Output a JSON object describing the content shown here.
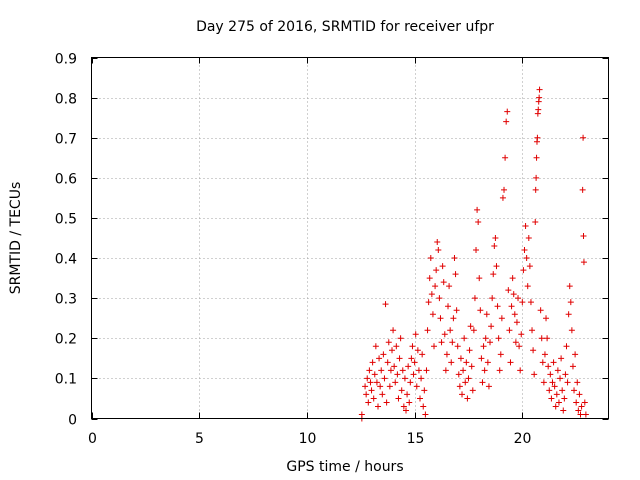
{
  "chart_data": {
    "type": "scatter",
    "title": "Day 275 of 2016, SRMTID for receiver ufpr",
    "xlabel": "GPS time / hours",
    "ylabel": "SRMTID / TECUs",
    "xlim": [
      0,
      24
    ],
    "ylim": [
      0,
      0.9
    ],
    "xticks": [
      0,
      5,
      10,
      15,
      20
    ],
    "yticks": [
      0,
      0.1,
      0.2,
      0.3,
      0.4,
      0.5,
      0.6,
      0.7,
      0.8,
      0.9
    ],
    "grid": true,
    "marker": "+",
    "series": [
      {
        "name": "SRMTID",
        "color": "#e00000",
        "points": [
          [
            12.55,
            0.0
          ],
          [
            12.55,
            0.01
          ],
          [
            12.7,
            0.08
          ],
          [
            12.75,
            0.06
          ],
          [
            12.8,
            0.1
          ],
          [
            12.85,
            0.04
          ],
          [
            12.9,
            0.12
          ],
          [
            12.95,
            0.09
          ],
          [
            13.0,
            0.07
          ],
          [
            13.05,
            0.14
          ],
          [
            13.1,
            0.05
          ],
          [
            13.15,
            0.11
          ],
          [
            13.2,
            0.18
          ],
          [
            13.25,
            0.09
          ],
          [
            13.3,
            0.03
          ],
          [
            13.35,
            0.15
          ],
          [
            13.4,
            0.08
          ],
          [
            13.45,
            0.12
          ],
          [
            13.5,
            0.06
          ],
          [
            13.55,
            0.16
          ],
          [
            13.6,
            0.1
          ],
          [
            13.65,
            0.285
          ],
          [
            13.7,
            0.04
          ],
          [
            13.75,
            0.14
          ],
          [
            13.8,
            0.19
          ],
          [
            13.85,
            0.08
          ],
          [
            13.9,
            0.12
          ],
          [
            13.95,
            0.17
          ],
          [
            14.0,
            0.22
          ],
          [
            14.05,
            0.13
          ],
          [
            14.1,
            0.09
          ],
          [
            14.15,
            0.18
          ],
          [
            14.2,
            0.11
          ],
          [
            14.25,
            0.05
          ],
          [
            14.3,
            0.15
          ],
          [
            14.35,
            0.2
          ],
          [
            14.4,
            0.07
          ],
          [
            14.45,
            0.12
          ],
          [
            14.5,
            0.03
          ],
          [
            14.55,
            0.1
          ],
          [
            14.6,
            0.02
          ],
          [
            14.65,
            0.06
          ],
          [
            14.7,
            0.13
          ],
          [
            14.75,
            0.04
          ],
          [
            14.8,
            0.09
          ],
          [
            14.85,
            0.15
          ],
          [
            14.9,
            0.18
          ],
          [
            14.95,
            0.11
          ],
          [
            15.0,
            0.14
          ],
          [
            15.05,
            0.21
          ],
          [
            15.1,
            0.08
          ],
          [
            15.15,
            0.17
          ],
          [
            15.2,
            0.12
          ],
          [
            15.25,
            0.05
          ],
          [
            15.3,
            0.1
          ],
          [
            15.35,
            0.16
          ],
          [
            15.4,
            0.03
          ],
          [
            15.45,
            0.07
          ],
          [
            15.5,
            0.01
          ],
          [
            15.55,
            0.12
          ],
          [
            15.6,
            0.22
          ],
          [
            15.65,
            0.29
          ],
          [
            15.7,
            0.35
          ],
          [
            15.75,
            0.4
          ],
          [
            15.8,
            0.31
          ],
          [
            15.85,
            0.26
          ],
          [
            15.9,
            0.18
          ],
          [
            15.95,
            0.33
          ],
          [
            16.0,
            0.37
          ],
          [
            16.05,
            0.44
          ],
          [
            16.1,
            0.42
          ],
          [
            16.15,
            0.3
          ],
          [
            16.2,
            0.25
          ],
          [
            16.25,
            0.19
          ],
          [
            16.3,
            0.38
          ],
          [
            16.35,
            0.34
          ],
          [
            16.4,
            0.21
          ],
          [
            16.45,
            0.12
          ],
          [
            16.5,
            0.16
          ],
          [
            16.55,
            0.28
          ],
          [
            16.6,
            0.33
          ],
          [
            16.65,
            0.22
          ],
          [
            16.7,
            0.14
          ],
          [
            16.75,
            0.19
          ],
          [
            16.8,
            0.25
          ],
          [
            16.85,
            0.4
          ],
          [
            16.9,
            0.36
          ],
          [
            16.95,
            0.27
          ],
          [
            17.0,
            0.18
          ],
          [
            17.05,
            0.11
          ],
          [
            17.1,
            0.08
          ],
          [
            17.15,
            0.15
          ],
          [
            17.2,
            0.06
          ],
          [
            17.25,
            0.12
          ],
          [
            17.3,
            0.2
          ],
          [
            17.35,
            0.09
          ],
          [
            17.4,
            0.14
          ],
          [
            17.45,
            0.05
          ],
          [
            17.5,
            0.1
          ],
          [
            17.55,
            0.17
          ],
          [
            17.6,
            0.23
          ],
          [
            17.65,
            0.13
          ],
          [
            17.7,
            0.07
          ],
          [
            17.75,
            0.22
          ],
          [
            17.8,
            0.3
          ],
          [
            17.85,
            0.42
          ],
          [
            17.9,
            0.52
          ],
          [
            17.95,
            0.49
          ],
          [
            18.0,
            0.35
          ],
          [
            18.05,
            0.27
          ],
          [
            18.1,
            0.15
          ],
          [
            18.15,
            0.09
          ],
          [
            18.2,
            0.18
          ],
          [
            18.25,
            0.12
          ],
          [
            18.3,
            0.2
          ],
          [
            18.35,
            0.26
          ],
          [
            18.4,
            0.14
          ],
          [
            18.45,
            0.08
          ],
          [
            18.5,
            0.19
          ],
          [
            18.55,
            0.23
          ],
          [
            18.6,
            0.3
          ],
          [
            18.65,
            0.36
          ],
          [
            18.7,
            0.43
          ],
          [
            18.75,
            0.45
          ],
          [
            18.8,
            0.38
          ],
          [
            18.85,
            0.28
          ],
          [
            18.9,
            0.2
          ],
          [
            18.95,
            0.12
          ],
          [
            19.0,
            0.16
          ],
          [
            19.05,
            0.25
          ],
          [
            19.1,
            0.55
          ],
          [
            19.15,
            0.57
          ],
          [
            19.2,
            0.65
          ],
          [
            19.25,
            0.74
          ],
          [
            19.3,
            0.765
          ],
          [
            19.35,
            0.32
          ],
          [
            19.4,
            0.22
          ],
          [
            19.45,
            0.14
          ],
          [
            19.5,
            0.28
          ],
          [
            19.55,
            0.35
          ],
          [
            19.6,
            0.31
          ],
          [
            19.65,
            0.26
          ],
          [
            19.7,
            0.19
          ],
          [
            19.75,
            0.24
          ],
          [
            19.8,
            0.3
          ],
          [
            19.85,
            0.18
          ],
          [
            19.9,
            0.12
          ],
          [
            19.95,
            0.21
          ],
          [
            20.0,
            0.29
          ],
          [
            20.05,
            0.37
          ],
          [
            20.1,
            0.42
          ],
          [
            20.15,
            0.48
          ],
          [
            20.2,
            0.4
          ],
          [
            20.25,
            0.33
          ],
          [
            20.3,
            0.45
          ],
          [
            20.35,
            0.38
          ],
          [
            20.4,
            0.29
          ],
          [
            20.45,
            0.22
          ],
          [
            20.5,
            0.17
          ],
          [
            20.55,
            0.11
          ],
          [
            20.6,
            0.49
          ],
          [
            20.62,
            0.57
          ],
          [
            20.64,
            0.6
          ],
          [
            20.66,
            0.65
          ],
          [
            20.68,
            0.69
          ],
          [
            20.7,
            0.7
          ],
          [
            20.72,
            0.76
          ],
          [
            20.74,
            0.77
          ],
          [
            20.76,
            0.79
          ],
          [
            20.78,
            0.8
          ],
          [
            20.8,
            0.82
          ],
          [
            20.85,
            0.27
          ],
          [
            20.9,
            0.2
          ],
          [
            20.95,
            0.14
          ],
          [
            21.0,
            0.09
          ],
          [
            21.05,
            0.16
          ],
          [
            21.1,
            0.25
          ],
          [
            21.15,
            0.2
          ],
          [
            21.2,
            0.13
          ],
          [
            21.25,
            0.07
          ],
          [
            21.3,
            0.11
          ],
          [
            21.35,
            0.05
          ],
          [
            21.4,
            0.09
          ],
          [
            21.45,
            0.14
          ],
          [
            21.5,
            0.08
          ],
          [
            21.55,
            0.03
          ],
          [
            21.6,
            0.06
          ],
          [
            21.65,
            0.12
          ],
          [
            21.7,
            0.04
          ],
          [
            21.75,
            0.1
          ],
          [
            21.8,
            0.15
          ],
          [
            21.85,
            0.07
          ],
          [
            21.9,
            0.02
          ],
          [
            21.95,
            0.05
          ],
          [
            22.0,
            0.11
          ],
          [
            22.05,
            0.18
          ],
          [
            22.1,
            0.09
          ],
          [
            22.15,
            0.26
          ],
          [
            22.2,
            0.33
          ],
          [
            22.25,
            0.29
          ],
          [
            22.3,
            0.22
          ],
          [
            22.35,
            0.13
          ],
          [
            22.4,
            0.07
          ],
          [
            22.45,
            0.16
          ],
          [
            22.5,
            0.04
          ],
          [
            22.55,
            0.09
          ],
          [
            22.6,
            0.02
          ],
          [
            22.65,
            0.06
          ],
          [
            22.7,
            0.01
          ],
          [
            22.75,
            0.03
          ],
          [
            22.8,
            0.57
          ],
          [
            22.82,
            0.7
          ],
          [
            22.84,
            0.455
          ],
          [
            22.86,
            0.39
          ],
          [
            22.9,
            0.04
          ],
          [
            22.95,
            0.01
          ]
        ]
      }
    ]
  }
}
